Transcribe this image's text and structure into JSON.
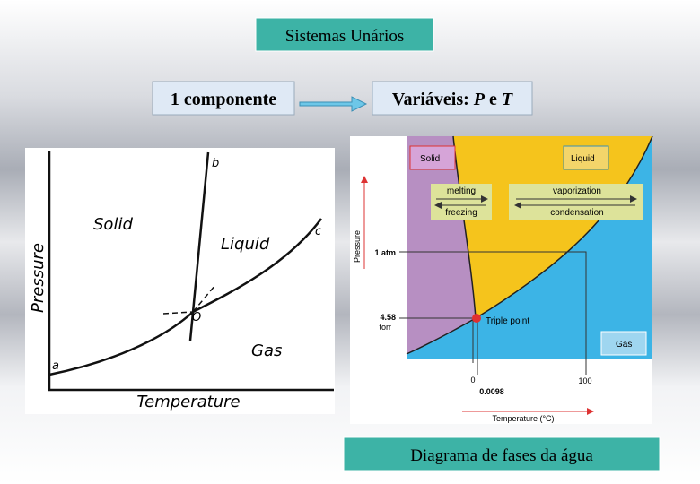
{
  "header": {
    "title": "Sistemas Unários"
  },
  "flow": {
    "left": "1 componente",
    "right_prefix": "Variáveis: ",
    "right_p": "P",
    "right_mid": " e ",
    "right_t": "T"
  },
  "left_diagram": {
    "curve_b": "b",
    "curve_c": "c",
    "curve_a": "a",
    "point": "O",
    "solid": "Solid",
    "liquid": "Liquid",
    "gas": "Gas",
    "y_axis": "Pressure",
    "x_axis": "Temperature"
  },
  "right_diagram": {
    "solid": "Solid",
    "liquid": "Liquid",
    "gas": "Gas",
    "melting": "melting",
    "freezing": "freezing",
    "vaporization": "vaporization",
    "condensation": "condensation",
    "triple_point": "Triple point",
    "pressure_1": "1 atm",
    "pressure_2_value": "4.58",
    "pressure_2_unit": "torr",
    "temp_1": "0",
    "temp_2": "0.0098",
    "temp_3": "100",
    "y_axis": "Pressure",
    "x_axis": "Temperature (°C)"
  },
  "caption": "Diagrama de fases da água"
}
